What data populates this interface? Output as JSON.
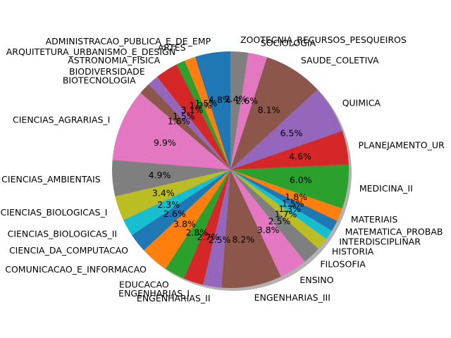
{
  "chart_data": {
    "type": "pie",
    "start_angle_deg": 90,
    "direction": "counterclockwise",
    "shadow": true,
    "legend": "none",
    "slices": [
      {
        "label": "ADMINISTRACAO_PUBLICA_E_DE_EMP",
        "value": 4.8,
        "pct_label": "4.8%",
        "color": "#1f77b4"
      },
      {
        "label": "ARTES",
        "value": 1.5,
        "pct_label": "1.5%",
        "color": "#ff7f0e"
      },
      {
        "label": "ARQUITETURA_URBANISMO_E_DESIGN",
        "value": 1.2,
        "pct_label": "1.2%",
        "color": "#2ca02c"
      },
      {
        "label": "ASTRONOMIA_FISICA",
        "value": 3.1,
        "pct_label": "3.1%",
        "color": "#d62728"
      },
      {
        "label": "BIODIVERSIDADE",
        "value": 1.5,
        "pct_label": "1.5%",
        "color": "#9467bd"
      },
      {
        "label": "BIOTECNOLOGIA",
        "value": 1.6,
        "pct_label": "1.6%",
        "color": "#8c564b"
      },
      {
        "label": "CIENCIAS_AGRARIAS_I",
        "value": 9.9,
        "pct_label": "9.9%",
        "color": "#e377c2"
      },
      {
        "label": "CIENCIAS_AMBIENTAIS",
        "value": 4.9,
        "pct_label": "4.9%",
        "color": "#7f7f7f"
      },
      {
        "label": "CIENCIAS_BIOLOGICAS_I",
        "value": 3.4,
        "pct_label": "3.4%",
        "color": "#bcbd22"
      },
      {
        "label": "CIENCIAS_BIOLOGICAS_II",
        "value": 2.3,
        "pct_label": "2.3%",
        "color": "#17becf"
      },
      {
        "label": "CIENCIA_DA_COMPUTACAO",
        "value": 2.6,
        "pct_label": "2.6%",
        "color": "#1f77b4"
      },
      {
        "label": "COMUNICACAO_E_INFORMACAO",
        "value": 3.8,
        "pct_label": "3.8%",
        "color": "#ff7f0e"
      },
      {
        "label": "EDUCACAO",
        "value": 2.8,
        "pct_label": "2.8%",
        "color": "#2ca02c"
      },
      {
        "label": "ENGENHARIAS_I",
        "value": 2.7,
        "pct_label": "2.7%",
        "color": "#d62728"
      },
      {
        "label": "ENGENHARIAS_II",
        "value": 2.5,
        "pct_label": "2.5%",
        "color": "#9467bd"
      },
      {
        "label": "ENGENHARIAS_III",
        "value": 8.2,
        "pct_label": "8.2%",
        "color": "#8c564b"
      },
      {
        "label": "ENSINO",
        "value": 3.8,
        "pct_label": "3.8%",
        "color": "#e377c2"
      },
      {
        "label": "FILOSOFIA",
        "value": 2.5,
        "pct_label": "2.5%",
        "color": "#7f7f7f"
      },
      {
        "label": "HISTORIA",
        "value": 1.7,
        "pct_label": "1.7%",
        "color": "#bcbd22"
      },
      {
        "label": "INTERDISCIPLINAR",
        "value": 1.3,
        "pct_label": "1.3%",
        "color": "#17becf"
      },
      {
        "label": "MATEMATICA_PROBAB",
        "value": 1.5,
        "pct_label": "1.5%",
        "color": "#1f77b4"
      },
      {
        "label": "MATERIAIS",
        "value": 1.8,
        "pct_label": "1.8%",
        "color": "#ff7f0e"
      },
      {
        "label": "MEDICINA_II",
        "value": 6.0,
        "pct_label": "6.0%",
        "color": "#2ca02c"
      },
      {
        "label": "PLANEJAMENTO_UR",
        "value": 4.6,
        "pct_label": "4.6%",
        "color": "#d62728"
      },
      {
        "label": "QUIMICA",
        "value": 6.5,
        "pct_label": "6.5%",
        "color": "#9467bd"
      },
      {
        "label": "SAUDE_COLETIVA",
        "value": 8.1,
        "pct_label": "8.1%",
        "color": "#8c564b"
      },
      {
        "label": "SOCIOLOGIA",
        "value": 2.6,
        "pct_label": "2.6%",
        "color": "#e377c2"
      },
      {
        "label": "ZOOTECNIA_RECURSOS_PESQUEIROS",
        "value": 2.4,
        "pct_label": "2.4%",
        "color": "#7f7f7f"
      }
    ]
  }
}
